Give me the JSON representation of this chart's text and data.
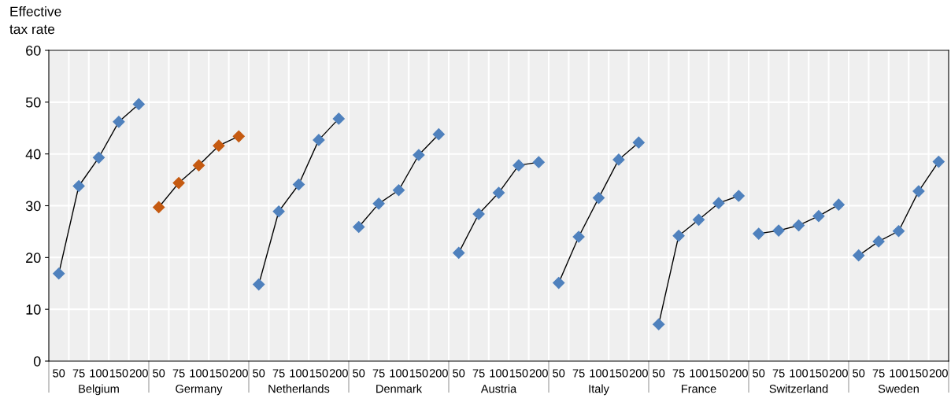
{
  "chart_data": {
    "type": "line",
    "ylabel": "Effective\ntax rate",
    "categories": [
      "50",
      "75",
      "100",
      "150",
      "200",
      "50",
      "75",
      "100",
      "150",
      "200",
      "50",
      "75",
      "100",
      "150",
      "200",
      "50",
      "75",
      "100",
      "150",
      "200",
      "50",
      "75",
      "100",
      "150",
      "200",
      "50",
      "75",
      "100",
      "150",
      "200",
      "50",
      "75",
      "100",
      "150",
      "200",
      "50",
      "75",
      "100",
      "150",
      "200",
      "50",
      "75",
      "100",
      "150",
      "200"
    ],
    "series": [
      {
        "color": "#4f81bd",
        "values": [
          16.9,
          33.8,
          39.3,
          46.2,
          49.6,
          null,
          null,
          null,
          null,
          null,
          null,
          null,
          null,
          null,
          null,
          null,
          null,
          null,
          null,
          null,
          null,
          null,
          null,
          null,
          null,
          null,
          null,
          null,
          null,
          null,
          null,
          null,
          null,
          null,
          null,
          null,
          null,
          null,
          null,
          null,
          null,
          null,
          null,
          null,
          null
        ]
      },
      {
        "color": "#c55a11",
        "values": [
          null,
          null,
          null,
          null,
          null,
          29.7,
          34.4,
          37.8,
          41.6,
          43.4,
          null,
          null,
          null,
          null,
          null,
          null,
          null,
          null,
          null,
          null,
          null,
          null,
          null,
          null,
          null,
          null,
          null,
          null,
          null,
          null,
          null,
          null,
          null,
          null,
          null,
          null,
          null,
          null,
          null,
          null,
          null,
          null,
          null,
          null,
          null
        ]
      },
      {
        "color": "#4f81bd",
        "values": [
          null,
          null,
          null,
          null,
          null,
          null,
          null,
          null,
          null,
          null,
          14.8,
          28.9,
          34.1,
          42.7,
          46.8,
          null,
          null,
          null,
          null,
          null,
          null,
          null,
          null,
          null,
          null,
          null,
          null,
          null,
          null,
          null,
          null,
          null,
          null,
          null,
          null,
          null,
          null,
          null,
          null,
          null,
          null,
          null,
          null,
          null,
          null
        ]
      },
      {
        "color": "#4f81bd",
        "values": [
          null,
          null,
          null,
          null,
          null,
          null,
          null,
          null,
          null,
          null,
          null,
          null,
          null,
          null,
          null,
          25.9,
          30.4,
          33.0,
          39.8,
          43.8,
          null,
          null,
          null,
          null,
          null,
          null,
          null,
          null,
          null,
          null,
          null,
          null,
          null,
          null,
          null,
          null,
          null,
          null,
          null,
          null,
          null,
          null,
          null,
          null,
          null
        ]
      },
      {
        "color": "#4f81bd",
        "values": [
          null,
          null,
          null,
          null,
          null,
          null,
          null,
          null,
          null,
          null,
          null,
          null,
          null,
          null,
          null,
          null,
          null,
          null,
          null,
          null,
          20.9,
          28.4,
          32.5,
          37.8,
          38.4,
          null,
          null,
          null,
          null,
          null,
          null,
          null,
          null,
          null,
          null,
          null,
          null,
          null,
          null,
          null,
          null,
          null,
          null,
          null,
          null
        ]
      },
      {
        "color": "#4f81bd",
        "values": [
          null,
          null,
          null,
          null,
          null,
          null,
          null,
          null,
          null,
          null,
          null,
          null,
          null,
          null,
          null,
          null,
          null,
          null,
          null,
          null,
          null,
          null,
          null,
          null,
          null,
          15.1,
          24.0,
          31.5,
          38.9,
          42.2,
          null,
          null,
          null,
          null,
          null,
          null,
          null,
          null,
          null,
          null,
          null,
          null,
          null,
          null,
          null
        ]
      },
      {
        "color": "#4f81bd",
        "values": [
          null,
          null,
          null,
          null,
          null,
          null,
          null,
          null,
          null,
          null,
          null,
          null,
          null,
          null,
          null,
          null,
          null,
          null,
          null,
          null,
          null,
          null,
          null,
          null,
          null,
          null,
          null,
          null,
          null,
          null,
          7.1,
          24.2,
          27.3,
          30.5,
          31.9,
          null,
          null,
          null,
          null,
          null,
          null,
          null,
          null,
          null,
          null
        ]
      },
      {
        "color": "#4f81bd",
        "values": [
          null,
          null,
          null,
          null,
          null,
          null,
          null,
          null,
          null,
          null,
          null,
          null,
          null,
          null,
          null,
          null,
          null,
          null,
          null,
          null,
          null,
          null,
          null,
          null,
          null,
          null,
          null,
          null,
          null,
          null,
          null,
          null,
          null,
          null,
          null,
          24.6,
          25.2,
          26.2,
          28.0,
          30.2,
          null,
          null,
          null,
          null,
          null
        ]
      },
      {
        "color": "#4f81bd",
        "values": [
          null,
          null,
          null,
          null,
          null,
          null,
          null,
          null,
          null,
          null,
          null,
          null,
          null,
          null,
          null,
          null,
          null,
          null,
          null,
          null,
          null,
          null,
          null,
          null,
          null,
          null,
          null,
          null,
          null,
          null,
          null,
          null,
          null,
          null,
          null,
          null,
          null,
          null,
          null,
          null,
          20.4,
          23.1,
          25.1,
          32.8,
          38.5
        ]
      }
    ],
    "ylim": [
      0,
      60
    ],
    "yticks": [
      0,
      10,
      20,
      30,
      40,
      50,
      60
    ],
    "grid": true,
    "marker": "diamond",
    "line_style": "solid",
    "annotations": [
      "Belgium",
      "Germany",
      "Netherlands",
      "Denmark",
      "Austria",
      "Italy",
      "France",
      "Switzerland",
      "Sweden"
    ]
  }
}
